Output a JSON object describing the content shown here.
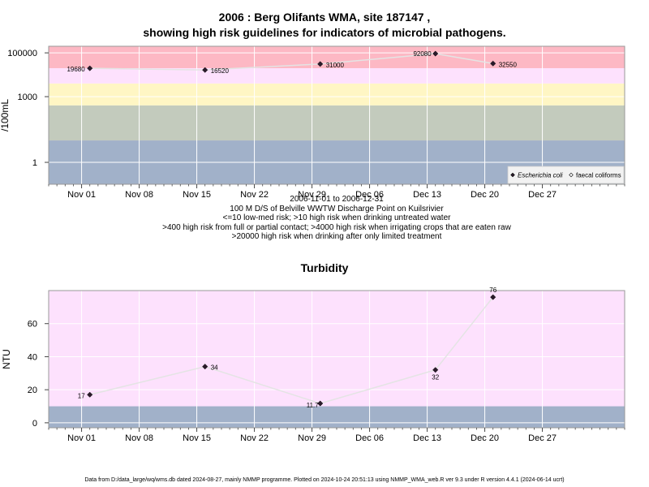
{
  "title": {
    "line1": "2006 : Berg Olifants WMA, site 187147 ,",
    "line2": "showing high risk guidelines for indicators of microbial pathogens."
  },
  "caption": {
    "line1": "2006-11-01 to 2006-12-31",
    "line2": "100 M D/S of Belville WWTW Discharge Point on Kuilsrivier",
    "line3": "<=10 low-med risk; >10 high risk when drinking untreated water",
    "line4": ">400 high risk from full or partial contact; >4000 high risk when irrigating crops that are eaten raw",
    "line5": ">20000 high risk when drinking after only limited treatment"
  },
  "footer": "Data from D:/data_large/wq/wms.db dated 2024-08-27, mainly NMMP programme. Plotted on 2024-10-24 20:51:13 using NMMP_WMA_web.R ver 9.3 under R version 4.4.1 (2024-06-14 ucrt)",
  "colors": {
    "band_blue": "#a1b1c9",
    "band_green": "#c3cbbd",
    "band_yellow": "#fff6c4",
    "band_pink": "#fde1fd",
    "band_red": "#fdb8c4",
    "line": "#e4e4e4",
    "point": "#2b1a2b"
  },
  "chart_data": [
    {
      "type": "line",
      "title": "",
      "ylabel": "/100mL",
      "xlabel": "",
      "yscale": "log10",
      "ylim": [
        0.1,
        200000
      ],
      "xlim": [
        "2006-10-28",
        "2007-01-06"
      ],
      "grid": true,
      "x_ticks": [
        "Nov 01",
        "Nov 08",
        "Nov 15",
        "Nov 22",
        "Nov 29",
        "Dec 06",
        "Dec 13",
        "Dec 20",
        "Dec 27"
      ],
      "x_tick_dates": [
        "2006-11-01",
        "2006-11-08",
        "2006-11-15",
        "2006-11-22",
        "2006-11-29",
        "2006-12-06",
        "2006-12-13",
        "2006-12-20",
        "2006-12-27"
      ],
      "y_ticks": [
        1,
        1000,
        100000
      ],
      "y_tick_labels": [
        "1",
        "1000",
        "100000"
      ],
      "risk_bands": [
        {
          "from": 0.1,
          "to": 10,
          "color": "band_blue"
        },
        {
          "from": 10,
          "to": 400,
          "color": "band_green"
        },
        {
          "from": 400,
          "to": 4000,
          "color": "band_yellow"
        },
        {
          "from": 4000,
          "to": 20000,
          "color": "band_pink"
        },
        {
          "from": 20000,
          "to": 200000,
          "color": "band_red"
        }
      ],
      "series": [
        {
          "name": "Escherichia coli",
          "marker": "filled-diamond",
          "x": [
            "2006-11-02",
            "2006-11-16",
            "2006-11-30",
            "2006-12-14",
            "2006-12-21"
          ],
          "y": [
            19680,
            16520,
            31000,
            92080,
            32550
          ],
          "labels": [
            "19680",
            "16520",
            "31000",
            "92080",
            "32550"
          ]
        }
      ],
      "legend": {
        "placement": "bottom-right",
        "items": [
          {
            "label": "Escherichia coli",
            "marker": "filled-diamond",
            "italic": true
          },
          {
            "label": "faecal coliforms",
            "marker": "open-diamond",
            "italic": false
          }
        ]
      }
    },
    {
      "type": "line",
      "title": "Turbidity",
      "ylabel": "NTU",
      "xlabel": "",
      "ylim": [
        -3,
        80
      ],
      "xlim": [
        "2006-10-28",
        "2007-01-06"
      ],
      "grid": true,
      "x_ticks": [
        "Nov 01",
        "Nov 08",
        "Nov 15",
        "Nov 22",
        "Nov 29",
        "Dec 06",
        "Dec 13",
        "Dec 20",
        "Dec 27"
      ],
      "x_tick_dates": [
        "2006-11-01",
        "2006-11-08",
        "2006-11-15",
        "2006-11-22",
        "2006-11-29",
        "2006-12-06",
        "2006-12-13",
        "2006-12-20",
        "2006-12-27"
      ],
      "y_ticks": [
        0,
        20,
        40,
        60
      ],
      "y_tick_labels": [
        "0",
        "20",
        "40",
        "60"
      ],
      "risk_bands": [
        {
          "from": -3,
          "to": 10,
          "color": "band_blue"
        },
        {
          "from": 10,
          "to": 80,
          "color": "band_pink"
        }
      ],
      "series": [
        {
          "x": [
            "2006-11-02",
            "2006-11-16",
            "2006-11-30",
            "2006-12-14",
            "2006-12-21"
          ],
          "y": [
            17,
            34,
            11.7,
            32,
            76
          ],
          "labels": [
            "17",
            "34",
            "11.7",
            "32",
            "76"
          ]
        }
      ]
    }
  ]
}
